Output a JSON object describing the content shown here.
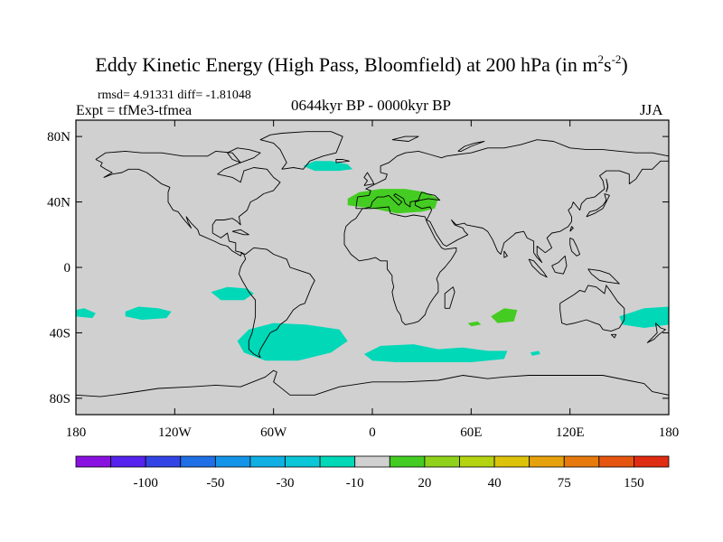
{
  "title": {
    "main": "Eddy Kinetic Energy (High Pass, Bloomfield) at 200 hPa (in m",
    "sup1": "2",
    "mid": "s",
    "sup2": "-2",
    "end": ")"
  },
  "stats": "rmsd= 4.91331 diff= -1.81048",
  "experiment": "Expt = tfMe3-tfmea",
  "period": "0644kyr BP - 0000kyr BP",
  "season": "JJA",
  "map": {
    "background_color": "#d0d0d0",
    "coastline_color": "#000000",
    "lon_range": [
      -180,
      180
    ],
    "lat_range": [
      -90,
      90
    ],
    "x_ticks": [
      {
        "lon": -180,
        "label": "180"
      },
      {
        "lon": -120,
        "label": "120W"
      },
      {
        "lon": -60,
        "label": "60W"
      },
      {
        "lon": 0,
        "label": "0"
      },
      {
        "lon": 60,
        "label": "60E"
      },
      {
        "lon": 120,
        "label": "120E"
      },
      {
        "lon": 180,
        "label": "180"
      }
    ],
    "y_ticks": [
      {
        "lat": 80,
        "label": "80N"
      },
      {
        "lat": 40,
        "label": "40N"
      },
      {
        "lat": 0,
        "label": "0"
      },
      {
        "lat": -40,
        "label": "40S"
      },
      {
        "lat": -80,
        "label": "80S"
      }
    ],
    "anomaly_regions": [
      {
        "name": "north-atlantic-negative",
        "color": "#00d8b8",
        "points": [
          [
            -42,
            62
          ],
          [
            -35,
            65
          ],
          [
            -25,
            65
          ],
          [
            -15,
            63
          ],
          [
            -12,
            60
          ],
          [
            -20,
            59
          ],
          [
            -35,
            59
          ]
        ]
      },
      {
        "name": "mediterranean-positive",
        "color": "#44cc22",
        "points": [
          [
            -15,
            42
          ],
          [
            -8,
            46
          ],
          [
            5,
            48
          ],
          [
            20,
            48
          ],
          [
            32,
            46
          ],
          [
            40,
            42
          ],
          [
            38,
            36
          ],
          [
            30,
            34
          ],
          [
            15,
            33
          ],
          [
            0,
            36
          ],
          [
            -15,
            38
          ]
        ]
      },
      {
        "name": "south-pacific-west-negative",
        "color": "#00d8b8",
        "points": [
          [
            -180,
            -26
          ],
          [
            -175,
            -25
          ],
          [
            -168,
            -28
          ],
          [
            -170,
            -31
          ],
          [
            -180,
            -30
          ]
        ]
      },
      {
        "name": "south-pacific-central-negative",
        "color": "#00d8b8",
        "points": [
          [
            -150,
            -27
          ],
          [
            -142,
            -24
          ],
          [
            -130,
            -25
          ],
          [
            -122,
            -27
          ],
          [
            -125,
            -31
          ],
          [
            -140,
            -32
          ],
          [
            -150,
            -30
          ]
        ]
      },
      {
        "name": "southeast-pacific-negative",
        "color": "#00d8b8",
        "points": [
          [
            -98,
            -15
          ],
          [
            -88,
            -12
          ],
          [
            -76,
            -13
          ],
          [
            -72,
            -16
          ],
          [
            -78,
            -20
          ],
          [
            -92,
            -20
          ]
        ]
      },
      {
        "name": "south-america-atlantic-negative",
        "color": "#00d8b8",
        "points": [
          [
            -82,
            -45
          ],
          [
            -75,
            -38
          ],
          [
            -60,
            -34
          ],
          [
            -40,
            -35
          ],
          [
            -20,
            -38
          ],
          [
            -15,
            -45
          ],
          [
            -25,
            -52
          ],
          [
            -45,
            -57
          ],
          [
            -65,
            -57
          ],
          [
            -78,
            -52
          ]
        ]
      },
      {
        "name": "southern-indian-ocean-negative",
        "color": "#00d8b8",
        "points": [
          [
            -5,
            -53
          ],
          [
            5,
            -48
          ],
          [
            25,
            -47
          ],
          [
            40,
            -50
          ],
          [
            55,
            -49
          ],
          [
            70,
            -51
          ],
          [
            82,
            -51
          ],
          [
            80,
            -56
          ],
          [
            60,
            -58
          ],
          [
            40,
            -58
          ],
          [
            15,
            -58
          ],
          [
            0,
            -57
          ]
        ]
      },
      {
        "name": "indian-ocean-small-negative",
        "color": "#00d8b8",
        "points": [
          [
            96,
            -52
          ],
          [
            101,
            -51
          ],
          [
            102,
            -53
          ],
          [
            97,
            -54
          ]
        ]
      },
      {
        "name": "indian-ocean-small-positive",
        "color": "#44cc22",
        "points": [
          [
            58,
            -34
          ],
          [
            64,
            -33
          ],
          [
            66,
            -35
          ],
          [
            60,
            -36
          ]
        ]
      },
      {
        "name": "indian-ocean-positive",
        "color": "#44cc22",
        "points": [
          [
            72,
            -30
          ],
          [
            80,
            -25
          ],
          [
            88,
            -26
          ],
          [
            86,
            -33
          ],
          [
            76,
            -34
          ]
        ]
      },
      {
        "name": "tasman-sea-negative",
        "color": "#00d8b8",
        "points": [
          [
            150,
            -30
          ],
          [
            165,
            -25
          ],
          [
            180,
            -24
          ],
          [
            180,
            -35
          ],
          [
            165,
            -37
          ],
          [
            152,
            -35
          ]
        ]
      }
    ]
  },
  "colorbar": {
    "colors": [
      "#8a12e0",
      "#5522ee",
      "#3344e6",
      "#1f6fe6",
      "#1494e8",
      "#10b0e4",
      "#0ac6d6",
      "#00d8b8",
      "#d0d0d0",
      "#44cc22",
      "#8fd11b",
      "#b4d412",
      "#dcc30a",
      "#e6a20c",
      "#e67a0c",
      "#e6550f",
      "#e02c12"
    ],
    "labels": [
      {
        "after_box": 2,
        "label": "-100"
      },
      {
        "after_box": 4,
        "label": "-50"
      },
      {
        "after_box": 6,
        "label": "-30"
      },
      {
        "after_box": 8,
        "label": "-10"
      },
      {
        "after_box": 10,
        "label": "20"
      },
      {
        "after_box": 12,
        "label": "40"
      },
      {
        "after_box": 14,
        "label": "75"
      },
      {
        "after_box": 16,
        "label": "150"
      }
    ]
  }
}
